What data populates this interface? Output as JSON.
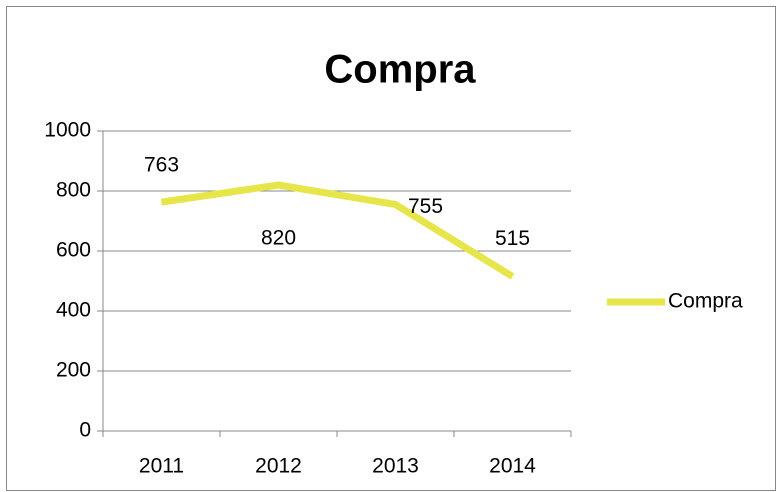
{
  "chart_data": {
    "type": "line",
    "title": "Compra",
    "categories": [
      "2011",
      "2012",
      "2013",
      "2014"
    ],
    "series": [
      {
        "name": "Compra",
        "color": "#e6e64a",
        "values": [
          763,
          820,
          755,
          515
        ]
      }
    ],
    "ylim": [
      0,
      1000
    ],
    "yticks": [
      0,
      200,
      400,
      600,
      800,
      1000
    ],
    "grid": true,
    "legend": "right"
  }
}
